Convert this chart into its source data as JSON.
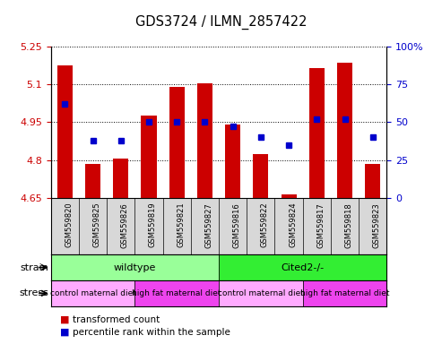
{
  "title": "GDS3724 / ILMN_2857422",
  "samples": [
    "GSM559820",
    "GSM559825",
    "GSM559826",
    "GSM559819",
    "GSM559821",
    "GSM559827",
    "GSM559816",
    "GSM559822",
    "GSM559824",
    "GSM559817",
    "GSM559818",
    "GSM559823"
  ],
  "bar_values": [
    5.175,
    4.785,
    4.805,
    4.975,
    5.09,
    5.105,
    4.94,
    4.825,
    4.665,
    5.165,
    5.185,
    4.785
  ],
  "percentile_values": [
    62,
    38,
    38,
    50,
    50,
    50,
    47,
    40,
    35,
    52,
    52,
    40
  ],
  "ymin": 4.65,
  "ymax": 5.25,
  "yticks": [
    4.65,
    4.8,
    4.95,
    5.1,
    5.25
  ],
  "ytick_labels": [
    "4.65",
    "4.8",
    "4.95",
    "5.1",
    "5.25"
  ],
  "right_yticks": [
    0,
    25,
    50,
    75,
    100
  ],
  "right_ytick_labels": [
    "0",
    "25",
    "50",
    "75",
    "100%"
  ],
  "bar_color": "#cc0000",
  "dot_color": "#0000cc",
  "strain_groups": [
    {
      "label": "wildtype",
      "start": 0,
      "end": 6,
      "color": "#99ff99"
    },
    {
      "label": "Cited2-/-",
      "start": 6,
      "end": 12,
      "color": "#33ee33"
    }
  ],
  "stress_groups": [
    {
      "label": "control maternal diet",
      "start": 0,
      "end": 3,
      "color": "#ffaaff"
    },
    {
      "label": "high fat maternal diet",
      "start": 3,
      "end": 6,
      "color": "#ee44ee"
    },
    {
      "label": "control maternal diet",
      "start": 6,
      "end": 9,
      "color": "#ffaaff"
    },
    {
      "label": "high fat maternal diet",
      "start": 9,
      "end": 12,
      "color": "#ee44ee"
    }
  ],
  "strain_label": "strain",
  "stress_label": "stress",
  "legend_red": "transformed count",
  "legend_blue": "percentile rank within the sample",
  "bg_color": "#ffffff",
  "tick_label_color_left": "#cc0000",
  "tick_label_color_right": "#0000cc",
  "plot_bg": "#ffffff",
  "xlabel_bg": "#d8d8d8"
}
